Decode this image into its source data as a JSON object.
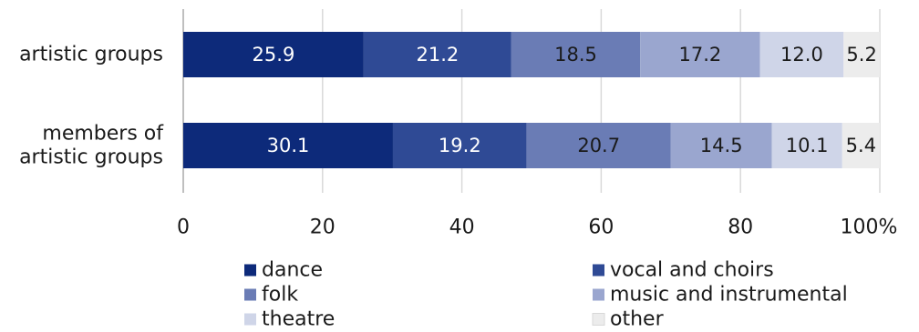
{
  "chart_data": {
    "type": "bar",
    "orientation": "horizontal",
    "stacked": true,
    "percent": true,
    "categories": [
      "artistic groups",
      "members of artistic groups"
    ],
    "category_lines": [
      [
        "artistic groups"
      ],
      [
        "members of",
        "artistic groups"
      ]
    ],
    "series": [
      {
        "name": "dance",
        "values": [
          25.9,
          30.1
        ],
        "labels": [
          "25.9",
          "30.1"
        ],
        "color": "#0d2a7a",
        "label_color": "#ffffff"
      },
      {
        "name": "vocal and choirs",
        "values": [
          21.2,
          19.2
        ],
        "labels": [
          "21.2",
          "19.2"
        ],
        "color": "#2f4a95",
        "label_color": "#ffffff"
      },
      {
        "name": "folk",
        "values": [
          18.5,
          20.7
        ],
        "labels": [
          "18.5",
          "20.7"
        ],
        "color": "#6a7cb5",
        "label_color": "#1a1a1a"
      },
      {
        "name": "music and instrumental",
        "values": [
          17.2,
          14.5
        ],
        "labels": [
          "17.2",
          "14.5"
        ],
        "color": "#9aa6cf",
        "label_color": "#1a1a1a"
      },
      {
        "name": "theatre",
        "values": [
          12.0,
          10.1
        ],
        "labels": [
          "12.0",
          "10.1"
        ],
        "color": "#cfd5e8",
        "label_color": "#1a1a1a"
      },
      {
        "name": "other",
        "values": [
          5.2,
          5.4
        ],
        "labels": [
          "5.2",
          "5.4"
        ],
        "color": "#ececec",
        "label_color": "#1a1a1a"
      }
    ],
    "x_ticks": [
      0,
      20,
      40,
      60,
      80,
      100
    ],
    "x_tick_labels": [
      "0",
      "20",
      "40",
      "60",
      "80",
      "100%"
    ],
    "xlim": [
      0,
      100
    ],
    "grid": true,
    "gridline_color": "#d9d9d9",
    "legend_position": "bottom",
    "title": "",
    "xlabel": "",
    "ylabel": ""
  }
}
